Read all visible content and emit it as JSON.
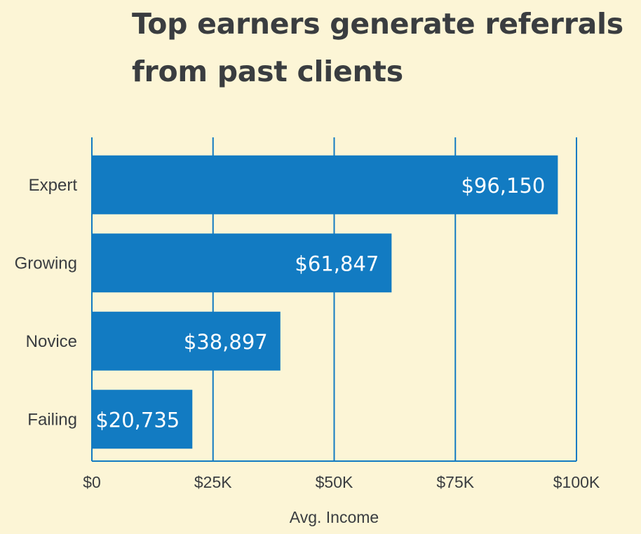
{
  "chart_data": {
    "type": "bar",
    "orientation": "horizontal",
    "title": [
      "Top earners generate referrals",
      "from past clients"
    ],
    "categories": [
      "Expert",
      "Growing",
      "Novice",
      "Failing"
    ],
    "values": [
      96150,
      61847,
      38897,
      20735
    ],
    "data_labels": [
      "$96,150",
      "$61,847",
      "$38,897",
      "$20,735"
    ],
    "xlabel": "Avg. Income",
    "ylabel": "",
    "xlim": [
      0,
      100000
    ],
    "x_ticks": [
      0,
      25000,
      50000,
      75000,
      100000
    ],
    "x_tick_labels": [
      "$0",
      "$25K",
      "$50K",
      "$75K",
      "$100K"
    ],
    "grid": "vertical",
    "legend": "none",
    "colors": {
      "bar": "#127bc2",
      "grid": "#127bc2",
      "background": "#fcf5d6",
      "title": "#3a3d40",
      "label": "#3a3d40",
      "data_label": "#ffffff"
    }
  }
}
